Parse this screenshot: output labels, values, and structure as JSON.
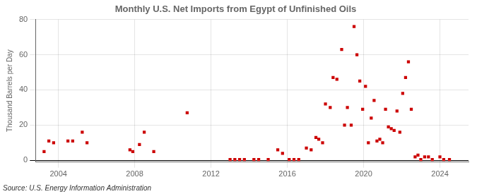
{
  "chart_data": {
    "type": "scatter",
    "title": "Monthly U.S. Net Imports from Egypt of Unfinished Oils",
    "ylabel": "Thousand Barrels per Day",
    "source": "Source: U.S. Energy Information Administration",
    "x": [
      2003.25,
      2003.5,
      2003.75,
      2004.5,
      2004.75,
      2005.25,
      2005.5,
      2007.75,
      2007.9,
      2008.25,
      2008.5,
      2009.0,
      2010.75,
      2013.0,
      2013.25,
      2013.5,
      2013.75,
      2014.25,
      2014.5,
      2015.0,
      2015.5,
      2015.75,
      2016.1,
      2016.35,
      2016.6,
      2017.0,
      2017.25,
      2017.5,
      2017.65,
      2017.85,
      2018.0,
      2018.25,
      2018.4,
      2018.6,
      2018.85,
      2019.0,
      2019.15,
      2019.35,
      2019.5,
      2019.65,
      2019.8,
      2019.95,
      2020.1,
      2020.25,
      2020.4,
      2020.55,
      2020.7,
      2020.85,
      2021.0,
      2021.15,
      2021.3,
      2021.45,
      2021.6,
      2021.75,
      2021.9,
      2022.05,
      2022.2,
      2022.35,
      2022.5,
      2022.7,
      2022.85,
      2023.0,
      2023.2,
      2023.4,
      2023.6,
      2024.0,
      2024.2,
      2024.5
    ],
    "values": [
      5,
      11,
      10,
      11,
      11,
      16,
      10,
      6,
      5,
      9,
      16,
      5,
      27,
      0.5,
      0.5,
      0.5,
      0.5,
      0.5,
      0.5,
      0.5,
      6,
      4,
      0.5,
      0.5,
      0.5,
      7,
      6,
      13,
      12,
      10,
      32,
      30,
      47,
      46,
      63,
      20,
      30,
      20,
      76,
      60,
      45,
      29,
      42,
      10,
      24,
      34,
      11,
      12,
      10,
      29,
      19,
      18,
      17,
      28,
      16,
      38,
      47,
      56,
      29,
      2,
      3,
      0.5,
      2,
      2,
      0.5,
      2,
      0.5,
      0.5
    ],
    "color": "#cc0000",
    "marker": "square",
    "xlim": [
      2002.8,
      2025.5
    ],
    "xticks": [
      2004,
      2008,
      2012,
      2016,
      2020,
      2024
    ],
    "ylim": [
      -1,
      80
    ],
    "yticks": [
      0,
      20,
      40,
      60,
      80
    ],
    "grid": true
  }
}
